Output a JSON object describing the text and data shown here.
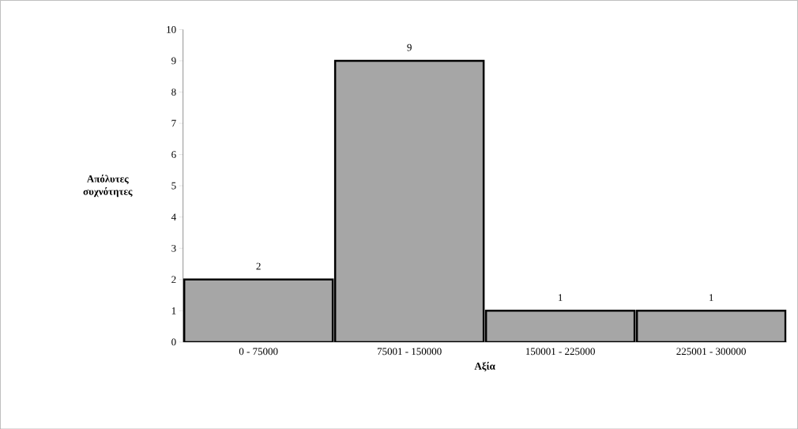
{
  "chart_data": {
    "type": "bar",
    "xlabel": "Αξία",
    "ylabel": "Απόλυτες συχνότητες",
    "categories": [
      "0 - 75000",
      "75001 - 150000",
      "150001 - 225000",
      "225001 - 300000"
    ],
    "values": [
      2,
      9,
      1,
      1
    ],
    "color": "#a6a6a6",
    "ylim": [
      0,
      10
    ],
    "yticks": [
      0,
      1,
      2,
      3,
      4,
      5,
      6,
      7,
      8,
      9,
      10
    ],
    "data_labels": true
  }
}
